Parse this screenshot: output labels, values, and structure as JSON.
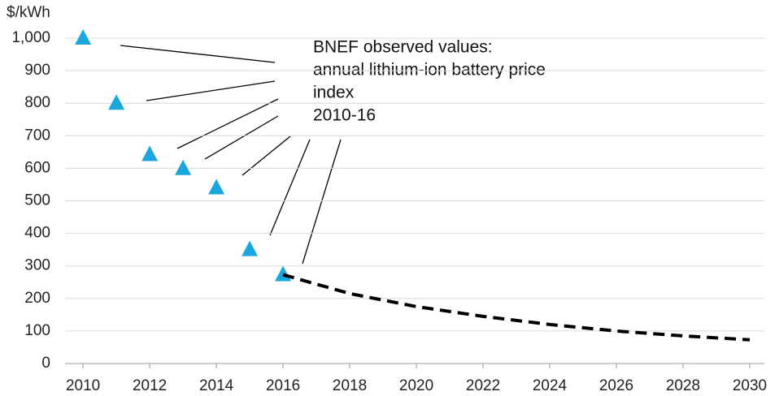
{
  "chart_data": {
    "type": "line",
    "y_label": "$/kWh",
    "annotation": [
      "BNEF observed values:",
      "annual lithium-ion battery price",
      "index",
      "2010-16"
    ],
    "series": [
      {
        "style": "markers",
        "color": "#1ba6dd",
        "x": [
          2010,
          2011,
          2012,
          2013,
          2014,
          2015,
          2016
        ],
        "values": [
          1000,
          800,
          642,
          599,
          540,
          350,
          273
        ]
      },
      {
        "style": "dashed",
        "color": "#000000",
        "x": [
          2016,
          2018,
          2020,
          2022,
          2024,
          2026,
          2028,
          2030
        ],
        "values": [
          273,
          215,
          175,
          145,
          120,
          100,
          85,
          73
        ]
      }
    ],
    "xlim": [
      2009.46,
      2030.44
    ],
    "xticks": [
      2010,
      2012,
      2014,
      2016,
      2018,
      2020,
      2022,
      2024,
      2026,
      2028,
      2030
    ],
    "ylim": [
      0,
      1000
    ],
    "yticks": [
      0,
      100,
      200,
      300,
      400,
      500,
      600,
      700,
      800,
      900,
      {
        "value": 1000,
        "label": "1,000"
      }
    ],
    "grid": true
  }
}
